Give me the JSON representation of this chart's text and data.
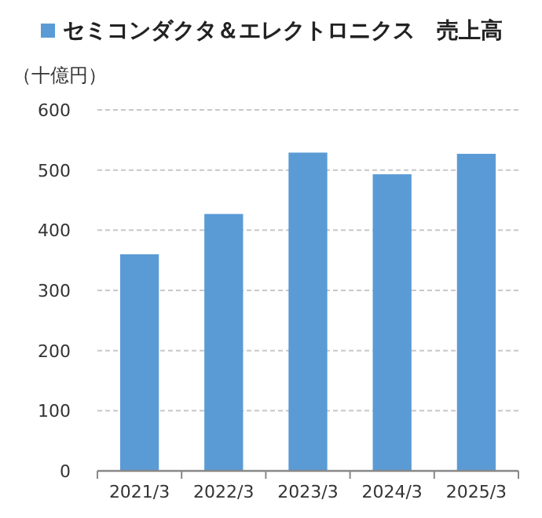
{
  "chart_data": {
    "type": "bar",
    "categories": [
      "2021/3",
      "2022/3",
      "2023/3",
      "2024/3",
      "2025/3"
    ],
    "series": [
      {
        "name": "セミコンダクタ＆エレクトロニクス　売上高",
        "color": "#5b9bd5",
        "values": [
          360,
          427,
          529,
          493,
          527
        ]
      }
    ],
    "ylabel": "（十億円）",
    "ylim": [
      0,
      600
    ],
    "yticks": [
      0,
      100,
      200,
      300,
      400,
      500,
      600
    ],
    "grid": "y",
    "legend": "top"
  }
}
